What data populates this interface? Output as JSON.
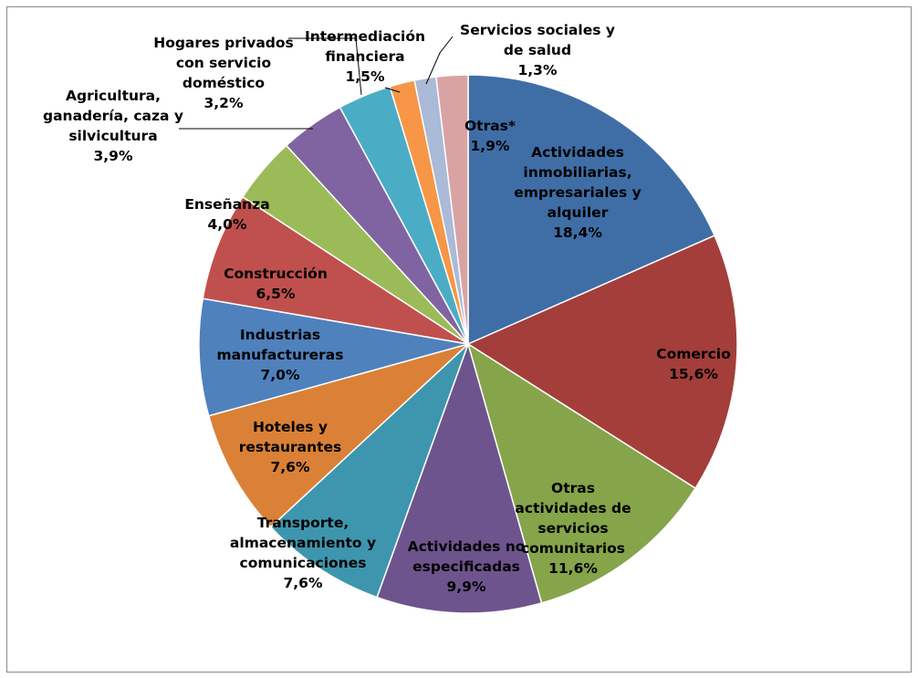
{
  "chart_data": {
    "type": "pie",
    "title": "",
    "legend": "none",
    "start_angle_deg": 0,
    "direction": "clockwise",
    "slices": [
      {
        "label": "Actividades inmobiliarias, empresariales y alquiler",
        "lines": [
          "Actividades",
          "inmobiliarias,",
          "empresariales y",
          "alquiler"
        ],
        "value": 18.4,
        "value_label": "18,4%",
        "color": "#3F6EA7"
      },
      {
        "label": "Comercio",
        "lines": [
          "Comercio"
        ],
        "value": 15.6,
        "value_label": "15,6%",
        "color": "#A33E3B"
      },
      {
        "label": "Otras actividades de servicios comunitarios",
        "lines": [
          "Otras",
          "actividades de",
          "servicios",
          "comunitarios"
        ],
        "value": 11.6,
        "value_label": "11,6%",
        "color": "#86A44A"
      },
      {
        "label": "Actividades no especificadas",
        "lines": [
          "Actividades no",
          "especificadas"
        ],
        "value": 9.9,
        "value_label": "9,9%",
        "color": "#6E548D"
      },
      {
        "label": "Transporte, almacenamiento y comunicaciones",
        "lines": [
          "Transporte,",
          "almacenamiento y",
          "comunicaciones"
        ],
        "value": 7.6,
        "value_label": "7,6%",
        "color": "#3D96AE"
      },
      {
        "label": "Hoteles y restaurantes",
        "lines": [
          "Hoteles y",
          "restaurantes"
        ],
        "value": 7.6,
        "value_label": "7,6%",
        "color": "#DA8137"
      },
      {
        "label": "Industrias manufactureras",
        "lines": [
          "Industrias",
          "manufactureras"
        ],
        "value": 7.0,
        "value_label": "7,0%",
        "color": "#4F81BD"
      },
      {
        "label": "Construcción",
        "lines": [
          "Construcción"
        ],
        "value": 6.5,
        "value_label": "6,5%",
        "color": "#C0504D"
      },
      {
        "label": "Enseñanza",
        "lines": [
          "Enseñanza"
        ],
        "value": 4.0,
        "value_label": "4,0%",
        "color": "#9BBB59"
      },
      {
        "label": "Agricultura, ganadería, caza y silvicultura",
        "lines": [
          "Agricultura,",
          "ganadería, caza y",
          "silvicultura"
        ],
        "value": 3.9,
        "value_label": "3,9%",
        "color": "#8064A2"
      },
      {
        "label": "Hogares privados con servicio doméstico",
        "lines": [
          "Hogares privados",
          "con servicio",
          "doméstico"
        ],
        "value": 3.2,
        "value_label": "3,2%",
        "color": "#4BACC6"
      },
      {
        "label": "Intermediación financiera",
        "lines": [
          "Intermediación",
          "financiera"
        ],
        "value": 1.5,
        "value_label": "1,5%",
        "color": "#F79646"
      },
      {
        "label": "Servicios sociales y de salud",
        "lines": [
          "Servicios sociales y",
          "de salud"
        ],
        "value": 1.3,
        "value_label": "1,3%",
        "color": "#AABAD7"
      },
      {
        "label": "Otras*",
        "lines": [
          "Otras*"
        ],
        "value": 1.9,
        "value_label": "1,9%",
        "color": "#D9A3A3"
      }
    ]
  }
}
